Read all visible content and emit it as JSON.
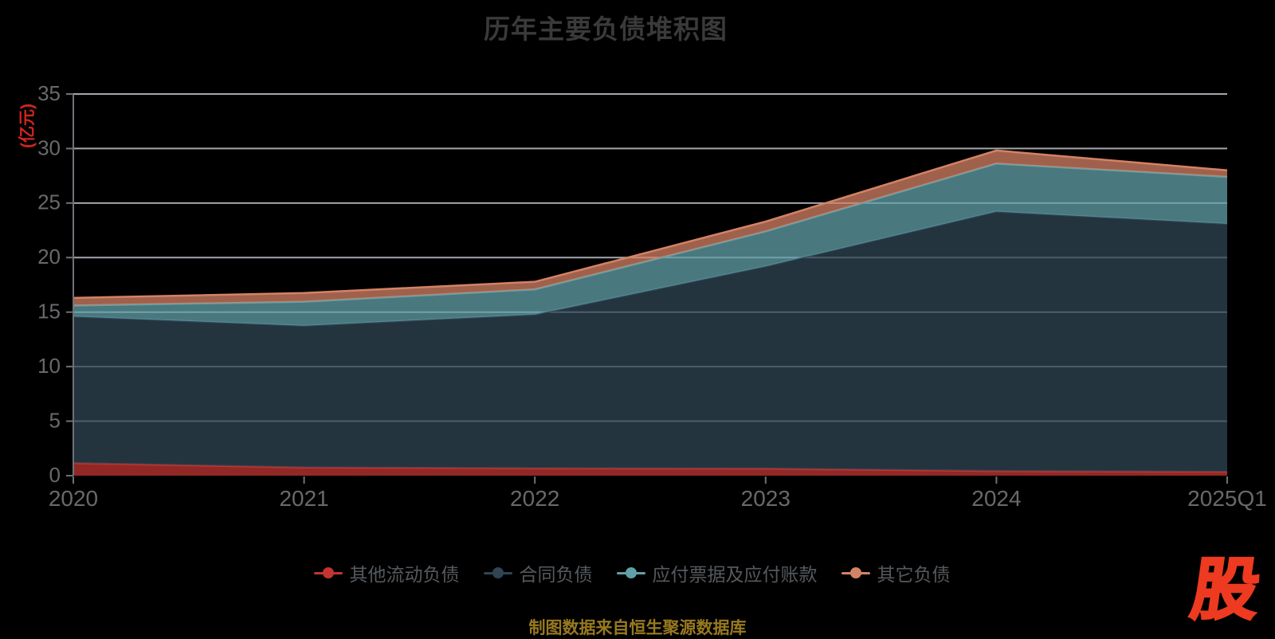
{
  "title": "历年主要负债堆积图",
  "y_axis": {
    "unit_label": "(亿元)",
    "ticks": [
      0,
      5,
      10,
      15,
      20,
      25,
      30,
      35
    ]
  },
  "chart_data": {
    "type": "area",
    "stacked": true,
    "title": "历年主要负债堆积图",
    "ylabel": "(亿元)",
    "xlabel": "",
    "ylim": [
      0,
      35
    ],
    "grid": true,
    "legend_position": "bottom",
    "categories": [
      "2020",
      "2021",
      "2022",
      "2023",
      "2024",
      "2025Q1"
    ],
    "series": [
      {
        "name": "其他流动负债",
        "color": "#c23531",
        "values": [
          1.15,
          0.75,
          0.68,
          0.65,
          0.42,
          0.35
        ]
      },
      {
        "name": "合同负债",
        "color": "#2f4554",
        "values": [
          13.45,
          13.0,
          14.1,
          18.55,
          23.8,
          22.75
        ]
      },
      {
        "name": "应付票据及应付账款",
        "color": "#61a0a8",
        "values": [
          1.0,
          2.2,
          2.3,
          3.2,
          4.4,
          4.3
        ]
      },
      {
        "name": "其它负债",
        "color": "#d48265",
        "values": [
          0.7,
          0.8,
          0.7,
          0.9,
          1.2,
          0.6
        ]
      }
    ]
  },
  "footer": {
    "attribution": "制图数据来自恒生聚源数据库",
    "logo_text": "股"
  },
  "colors": {
    "background": "#000000",
    "title": "#3a3a3a",
    "unit_label": "#d02420",
    "grid_line": "#ccd1d9",
    "axis_line": "#6e7278",
    "tick_label": "#67696c",
    "legend_text": "#55595d",
    "attribution": "#97791f",
    "logo": "#ee3a20"
  }
}
